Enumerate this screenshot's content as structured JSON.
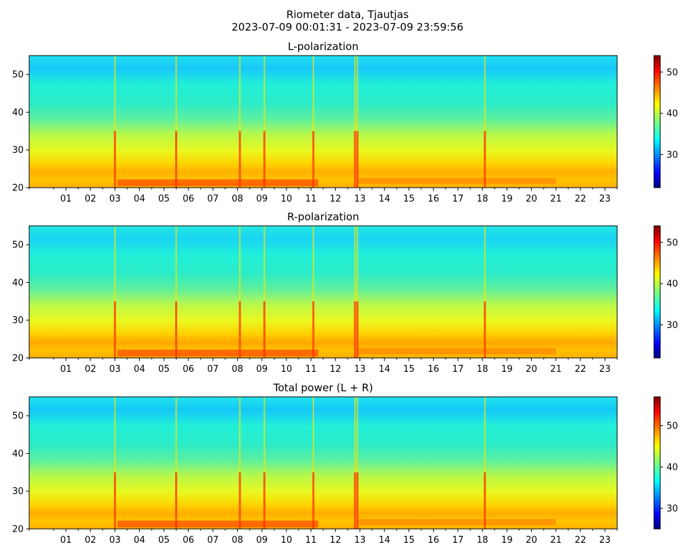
{
  "figure": {
    "title_line1": "Riometer data, Tjautjas",
    "title_line2": "2023-07-09 00:01:31 - 2023-07-09 23:59:56"
  },
  "chart_data": [
    {
      "type": "heatmap",
      "title": "L-polarization",
      "x_range": [
        0,
        24
      ],
      "x_tick_labels": [
        "01",
        "02",
        "03",
        "04",
        "05",
        "06",
        "07",
        "08",
        "09",
        "10",
        "11",
        "12",
        "13",
        "14",
        "15",
        "16",
        "17",
        "18",
        "19",
        "20",
        "21",
        "22",
        "23"
      ],
      "y_range": [
        20,
        55
      ],
      "y_ticks": [
        20,
        30,
        40,
        50
      ],
      "colorbar": {
        "colormap": "jet",
        "range": [
          22,
          54
        ],
        "ticks": [
          30,
          40,
          50
        ]
      },
      "vertical_event_hours": [
        3.5,
        6.0,
        8.6,
        9.6,
        11.6,
        13.3,
        13.4,
        18.6
      ],
      "grid": false
    },
    {
      "type": "heatmap",
      "title": "R-polarization",
      "x_range": [
        0,
        24
      ],
      "x_tick_labels": [
        "01",
        "02",
        "03",
        "04",
        "05",
        "06",
        "07",
        "08",
        "09",
        "10",
        "11",
        "12",
        "13",
        "14",
        "15",
        "16",
        "17",
        "18",
        "19",
        "20",
        "21",
        "22",
        "23"
      ],
      "y_range": [
        20,
        55
      ],
      "y_ticks": [
        20,
        30,
        40,
        50
      ],
      "colorbar": {
        "colormap": "jet",
        "range": [
          22,
          54
        ],
        "ticks": [
          30,
          40,
          50
        ]
      },
      "vertical_event_hours": [
        3.5,
        6.0,
        8.6,
        9.6,
        11.6,
        13.3,
        13.4,
        18.6
      ],
      "grid": false
    },
    {
      "type": "heatmap",
      "title": "Total power (L + R)",
      "x_range": [
        0,
        24
      ],
      "x_tick_labels": [
        "01",
        "02",
        "03",
        "04",
        "05",
        "06",
        "07",
        "08",
        "09",
        "10",
        "11",
        "12",
        "13",
        "14",
        "15",
        "16",
        "17",
        "18",
        "19",
        "20",
        "21",
        "22",
        "23"
      ],
      "y_range": [
        20,
        55
      ],
      "y_ticks": [
        20,
        30,
        40,
        50
      ],
      "colorbar": {
        "colormap": "jet",
        "range": [
          25,
          57
        ],
        "ticks": [
          30,
          40,
          50
        ]
      },
      "vertical_event_hours": [
        3.5,
        6.0,
        8.6,
        9.6,
        11.6,
        13.3,
        13.4,
        18.6
      ],
      "grid": false
    }
  ]
}
